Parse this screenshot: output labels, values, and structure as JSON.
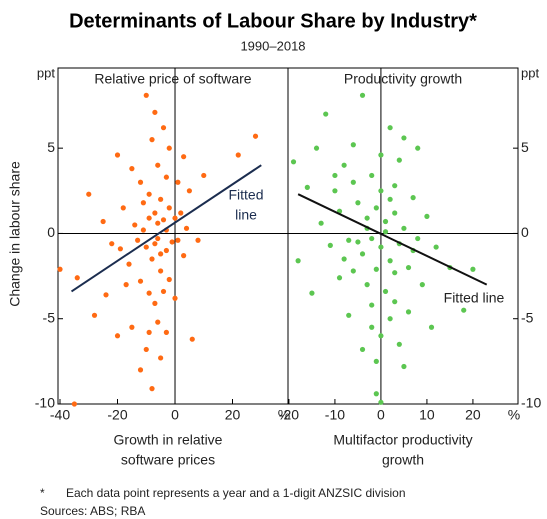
{
  "title": "Determinants of Labour Share by Industry*",
  "subtitle": "1990–2018",
  "ylabel": "Change in labour share",
  "footnote_mark": "*",
  "footnote": "Each data point represents a year and a 1-digit ANZSIC division",
  "sources": "Sources: ABS; RBA",
  "chart_data": [
    {
      "type": "scatter",
      "title": "Relative price of software",
      "color": "#ff6a13",
      "xlabel": [
        "Growth in relative",
        "software prices"
      ],
      "x_unit": "%",
      "y_unit": "ppt",
      "xlim": [
        -40.7,
        39.3
      ],
      "xticks": [
        -40,
        -20,
        0,
        20
      ],
      "ylim": [
        -10,
        9.7
      ],
      "yticks": [
        5,
        0,
        -5,
        -10
      ],
      "x": [
        -10,
        -7,
        -4,
        -8,
        -2,
        3,
        -20,
        -15,
        -6,
        -12,
        -3,
        1,
        5,
        10,
        28,
        22,
        -30,
        -25,
        -18,
        -14,
        -11,
        -9,
        -7,
        -5,
        -4,
        -2,
        0,
        2,
        4,
        -22,
        -19,
        -16,
        -13,
        -10,
        -8,
        -6,
        -5,
        -3,
        -1,
        1,
        3,
        8,
        -40,
        -34,
        -28,
        -24,
        -17,
        -12,
        -9,
        -7,
        -6,
        -4,
        -2,
        -9,
        -15,
        -20,
        -10,
        -5,
        -8,
        -35,
        -12,
        6,
        -3,
        0,
        -11,
        -7,
        -6,
        -3,
        -9,
        -5
      ],
      "y": [
        8.1,
        7.1,
        6.2,
        5.5,
        5.0,
        4.5,
        4.6,
        3.8,
        4.0,
        3.0,
        3.3,
        3.0,
        2.5,
        3.4,
        5.7,
        4.6,
        2.3,
        0.7,
        1.5,
        0.5,
        1.8,
        2.3,
        1.2,
        2.0,
        0.8,
        1.5,
        0.9,
        1.2,
        0.3,
        -0.6,
        -0.9,
        -1.8,
        -0.4,
        -0.8,
        -1.5,
        -0.3,
        -2.2,
        -1.0,
        -0.5,
        -0.4,
        -1.3,
        -0.4,
        -2.1,
        -2.6,
        -4.8,
        -3.6,
        -3.0,
        -2.8,
        -3.5,
        -4.1,
        -5.2,
        -3.4,
        -2.7,
        -5.8,
        -5.5,
        -6.0,
        -6.8,
        -7.3,
        -9.1,
        -10.0,
        -8.0,
        -6.2,
        -5.8,
        -3.8,
        0.2,
        -0.6,
        0.6,
        0.2,
        0.9,
        -1.2
      ],
      "fit": {
        "color": "#1b2d4f",
        "x": [
          -36,
          30
        ],
        "y": [
          -3.4,
          4.0
        ],
        "label": [
          "Fitted",
          "line"
        ]
      }
    },
    {
      "type": "scatter",
      "title": "Productivity growth",
      "color": "#5cc651",
      "xlabel": [
        "Multifactor productivity",
        "growth"
      ],
      "x_unit": "%",
      "y_unit": "ppt",
      "xlim": [
        -20.2,
        29.8
      ],
      "xticks": [
        -20,
        -10,
        0,
        10,
        20
      ],
      "ylim": [
        -10,
        9.7
      ],
      "yticks": [
        5,
        0,
        -5,
        -10
      ],
      "x": [
        -19,
        -12,
        -4,
        2,
        5,
        8,
        -14,
        -8,
        0,
        4,
        -16,
        -10,
        -6,
        -2,
        3,
        7,
        10,
        -13,
        -9,
        -5,
        -3,
        -1,
        1,
        3,
        5,
        8,
        12,
        15,
        20,
        18,
        -18,
        -11,
        -7,
        -4,
        -2,
        0,
        2,
        4,
        6,
        9,
        -15,
        -9,
        -6,
        -3,
        -1,
        1,
        3,
        6,
        -7,
        -2,
        0,
        2,
        4,
        -4,
        -1,
        5,
        0,
        -1,
        -3,
        1,
        -5,
        2,
        -8,
        0,
        3,
        -2,
        7,
        -10,
        11,
        -6
      ],
      "y": [
        4.2,
        7.0,
        8.1,
        6.2,
        5.6,
        5.0,
        5.0,
        4.0,
        4.6,
        4.3,
        2.7,
        2.5,
        3.0,
        3.4,
        2.8,
        2.1,
        1.0,
        0.6,
        1.3,
        1.8,
        0.9,
        1.5,
        0.7,
        1.2,
        0.3,
        -0.3,
        -0.8,
        -2.0,
        -2.1,
        -4.5,
        -1.6,
        -0.7,
        -0.4,
        -1.2,
        -0.3,
        -0.8,
        -1.6,
        -0.6,
        -2.0,
        -3.0,
        -3.5,
        -2.6,
        -2.2,
        -3.0,
        -2.1,
        -3.4,
        -4.0,
        -4.6,
        -4.8,
        -5.5,
        -6.0,
        -5.0,
        -6.5,
        -6.8,
        -7.5,
        -7.8,
        -9.9,
        -9.4,
        0.3,
        0.1,
        -0.5,
        2.0,
        -1.5,
        2.5,
        -2.3,
        -4.2,
        -1.0,
        3.4,
        -5.5,
        5.2
      ],
      "fit": {
        "color": "#111111",
        "x": [
          -18,
          23
        ],
        "y": [
          2.3,
          -3.0
        ],
        "label": [
          "Fitted line"
        ]
      }
    }
  ]
}
